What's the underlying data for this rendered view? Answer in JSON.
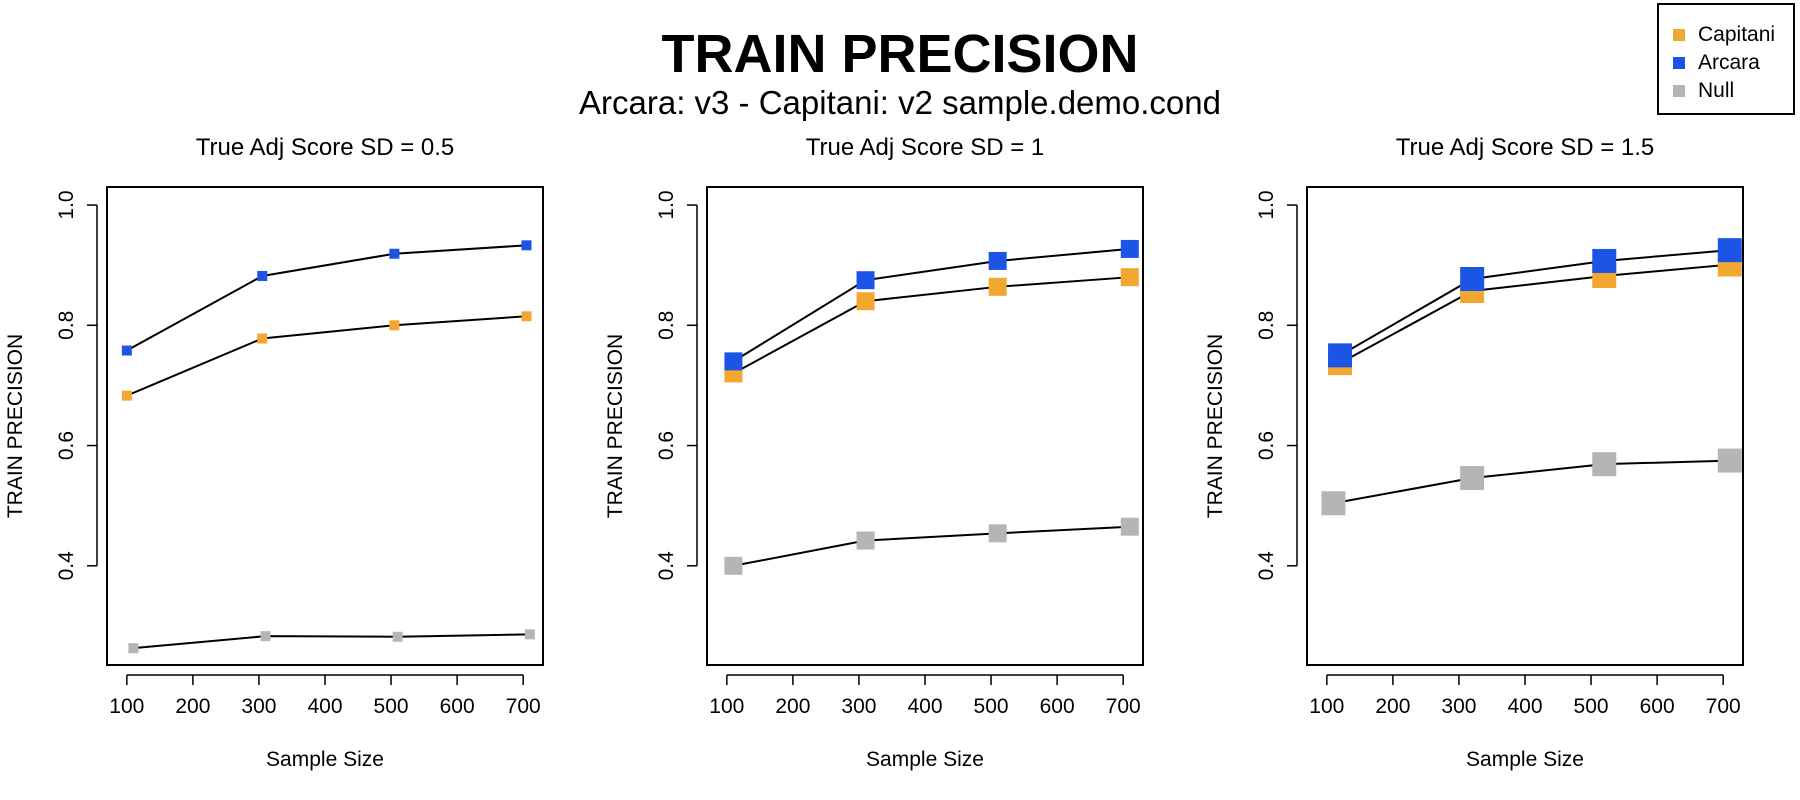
{
  "title": "TRAIN PRECISION",
  "subtitle": "Arcara: v3 - Capitani: v2 sample.demo.cond",
  "legend": [
    {
      "name": "Capitani",
      "color": "#F2A731"
    },
    {
      "name": "Arcara",
      "color": "#1C55E6"
    },
    {
      "name": "Null",
      "color": "#B5B5B5"
    }
  ],
  "colors": {
    "Capitani": "#F2A731",
    "Arcara": "#1C55E6",
    "Null": "#B5B5B5",
    "line": "#000000"
  },
  "chart_data": [
    {
      "type": "line",
      "title": "True Adj Score SD = 0.5",
      "xlabel": "Sample Size",
      "ylabel": "TRAIN PRECISION",
      "xticks": [
        100,
        200,
        300,
        400,
        500,
        600,
        700
      ],
      "yticks": [
        "0.4",
        "0.6",
        "0.8",
        "1.0"
      ],
      "xlim": [
        70,
        730
      ],
      "ylim": [
        0.235,
        1.03
      ],
      "grid": false,
      "series": [
        {
          "name": "Arcara",
          "x": [
            100,
            300,
            500,
            700
          ],
          "points_x": [
            100,
            305,
            505,
            705
          ],
          "values": [
            0.758,
            0.882,
            0.919,
            0.933
          ]
        },
        {
          "name": "Capitani",
          "x": [
            100,
            300,
            500,
            700
          ],
          "points_x": [
            100,
            305,
            505,
            705
          ],
          "values": [
            0.683,
            0.778,
            0.8,
            0.815
          ]
        },
        {
          "name": "Null",
          "x": [
            100,
            300,
            500,
            700
          ],
          "points_x": [
            110,
            310,
            510,
            710
          ],
          "values": [
            0.263,
            0.283,
            0.282,
            0.286
          ]
        }
      ]
    },
    {
      "type": "line",
      "title": "True Adj Score SD = 1",
      "xlabel": "Sample Size",
      "ylabel": "TRAIN PRECISION",
      "xticks": [
        100,
        200,
        300,
        400,
        500,
        600,
        700
      ],
      "yticks": [
        "0.4",
        "0.6",
        "0.8",
        "1.0"
      ],
      "xlim": [
        70,
        730
      ],
      "ylim": [
        0.235,
        1.03
      ],
      "grid": false,
      "series": [
        {
          "name": "Arcara",
          "x": [
            100,
            300,
            500,
            700
          ],
          "points_x": [
            110,
            310,
            510,
            710
          ],
          "values": [
            0.74,
            0.875,
            0.907,
            0.927
          ]
        },
        {
          "name": "Capitani",
          "x": [
            100,
            300,
            500,
            700
          ],
          "points_x": [
            110,
            310,
            510,
            710
          ],
          "values": [
            0.72,
            0.84,
            0.864,
            0.88
          ]
        },
        {
          "name": "Null",
          "x": [
            100,
            300,
            500,
            700
          ],
          "points_x": [
            110,
            310,
            510,
            710
          ],
          "values": [
            0.4,
            0.442,
            0.454,
            0.465
          ]
        }
      ]
    },
    {
      "type": "line",
      "title": "True Adj Score SD = 1.5",
      "xlabel": "Sample Size",
      "ylabel": "TRAIN PRECISION",
      "xticks": [
        100,
        200,
        300,
        400,
        500,
        600,
        700
      ],
      "yticks": [
        "0.4",
        "0.6",
        "0.8",
        "1.0"
      ],
      "xlim": [
        70,
        730
      ],
      "ylim": [
        0.235,
        1.03
      ],
      "grid": false,
      "series": [
        {
          "name": "Arcara",
          "x": [
            100,
            300,
            500,
            700
          ],
          "points_x": [
            120,
            320,
            520,
            710
          ],
          "values": [
            0.75,
            0.877,
            0.907,
            0.925
          ]
        },
        {
          "name": "Capitani",
          "x": [
            100,
            300,
            500,
            700
          ],
          "points_x": [
            120,
            320,
            520,
            710
          ],
          "values": [
            0.737,
            0.857,
            0.882,
            0.901
          ]
        },
        {
          "name": "Null",
          "x": [
            100,
            300,
            500,
            700
          ],
          "points_x": [
            110,
            320,
            520,
            710
          ],
          "values": [
            0.504,
            0.546,
            0.569,
            0.575
          ]
        }
      ]
    }
  ]
}
